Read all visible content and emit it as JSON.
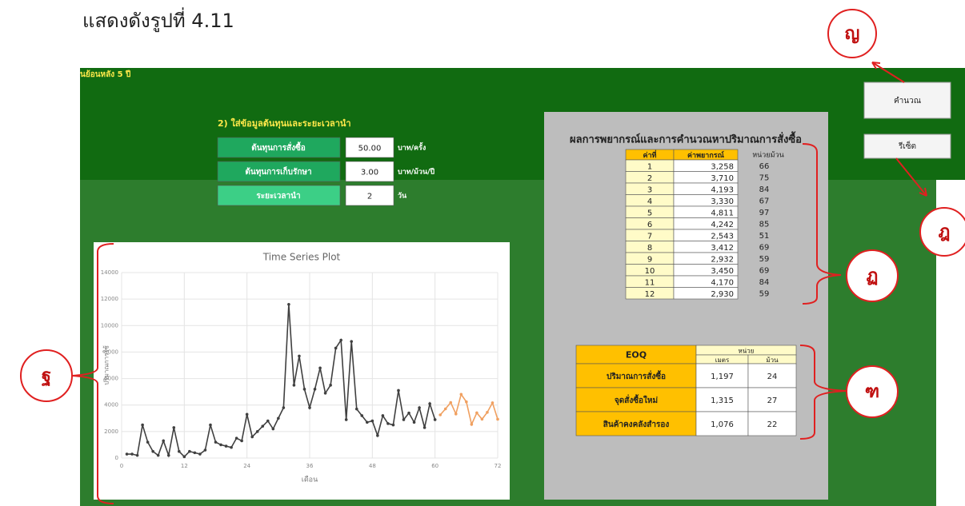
{
  "caption": "แสดงดังรูปที่ 4.11",
  "header_fragment": "นย้อนหลัง 5 ปี",
  "input_section": {
    "title": "2) ใส่ข้อมูลต้นทุนและระยะเวลานำ",
    "rows": [
      [
        "ต้นทุนการสั่งซื้อ",
        "50.00",
        "บาท/ครั้ง"
      ],
      [
        "ต้นทุนการเก็บรักษา",
        "3.00",
        "บาท/ม้วน/ปี"
      ],
      [
        "ระยะเวลานำ",
        "2",
        "วัน"
      ]
    ]
  },
  "buttons": [
    "คำนวณ",
    "รีเซ็ต"
  ],
  "result_panel": {
    "title": "ผลการพยากรณ์และการคำนวณหาปริมาณการสั่งซื้อ",
    "forecast_table": {
      "header": [
        "ค่าที่",
        "ค่าพยากรณ์",
        "หน่วยม้วน"
      ],
      "rows": [
        [
          "1",
          "3,258",
          "66"
        ],
        [
          "2",
          "3,710",
          "75"
        ],
        [
          "3",
          "4,193",
          "84"
        ],
        [
          "4",
          "3,330",
          "67"
        ],
        [
          "5",
          "4,811",
          "97"
        ],
        [
          "6",
          "4,242",
          "85"
        ],
        [
          "7",
          "2,543",
          "51"
        ],
        [
          "8",
          "3,412",
          "69"
        ],
        [
          "9",
          "2,932",
          "59"
        ],
        [
          "10",
          "3,450",
          "69"
        ],
        [
          "11",
          "4,170",
          "84"
        ],
        [
          "12",
          "2,930",
          "59"
        ]
      ]
    },
    "eoq_table": {
      "title": "EOQ",
      "unit_header": "หน่วย",
      "units": [
        "เมตร",
        "ม้วน"
      ],
      "rows": [
        [
          "ปริมาณการสั่งซื้อ",
          "1,197",
          "24"
        ],
        [
          "จุดสั่งซื้อใหม่",
          "1,315",
          "27"
        ],
        [
          "สินค้าคงคลังสำรอง",
          "1,076",
          "22"
        ]
      ]
    }
  },
  "annotations": [
    "ญ",
    "ฎ",
    "ฏ",
    "ฐ",
    "ฑ"
  ],
  "chart_data": {
    "type": "line",
    "title": "Time Series Plot",
    "x_label": "เดือน",
    "y_label": "ปริมาณการใช้",
    "xlim": [
      0,
      72
    ],
    "xticks": [
      0,
      12,
      24,
      36,
      48,
      60,
      72
    ],
    "ylim": [
      0,
      14000
    ],
    "yticks": [
      0,
      2000,
      4000,
      6000,
      8000,
      10000,
      12000,
      14000
    ],
    "grid": true,
    "series": [
      {
        "color": "#404040",
        "x": [
          1,
          2,
          3,
          4,
          5,
          6,
          7,
          8,
          9,
          10,
          11,
          12,
          13,
          14,
          15,
          16,
          17,
          18,
          19,
          20,
          21,
          22,
          23,
          24,
          25,
          26,
          27,
          28,
          29,
          30,
          31,
          32,
          33,
          34,
          35,
          36,
          37,
          38,
          39,
          40,
          41,
          42,
          43,
          44,
          45,
          46,
          47,
          48,
          49,
          50,
          51,
          52,
          53,
          54,
          55,
          56,
          57,
          58,
          59,
          60
        ],
        "values": [
          300,
          300,
          200,
          2500,
          1200,
          500,
          200,
          1300,
          200,
          2300,
          500,
          100,
          500,
          400,
          300,
          600,
          2500,
          1200,
          1000,
          900,
          800,
          1500,
          1300,
          3300,
          1600,
          2000,
          2400,
          2800,
          2200,
          3000,
          3800,
          11600,
          5500,
          7700,
          5200,
          3800,
          5200,
          6800,
          4900,
          5500,
          8300,
          8900,
          2900,
          8800,
          3700,
          3200,
          2700,
          2800,
          1700,
          3200,
          2600,
          2500,
          5100,
          2900,
          3400,
          2700,
          3800,
          2300,
          4100,
          2900
        ]
      },
      {
        "color": "#f0a060",
        "x": [
          61,
          62,
          63,
          64,
          65,
          66,
          67,
          68,
          69,
          70,
          71,
          72
        ],
        "values": [
          3258,
          3710,
          4193,
          3330,
          4811,
          4242,
          2543,
          3412,
          2932,
          3450,
          4170,
          2930
        ]
      }
    ]
  }
}
